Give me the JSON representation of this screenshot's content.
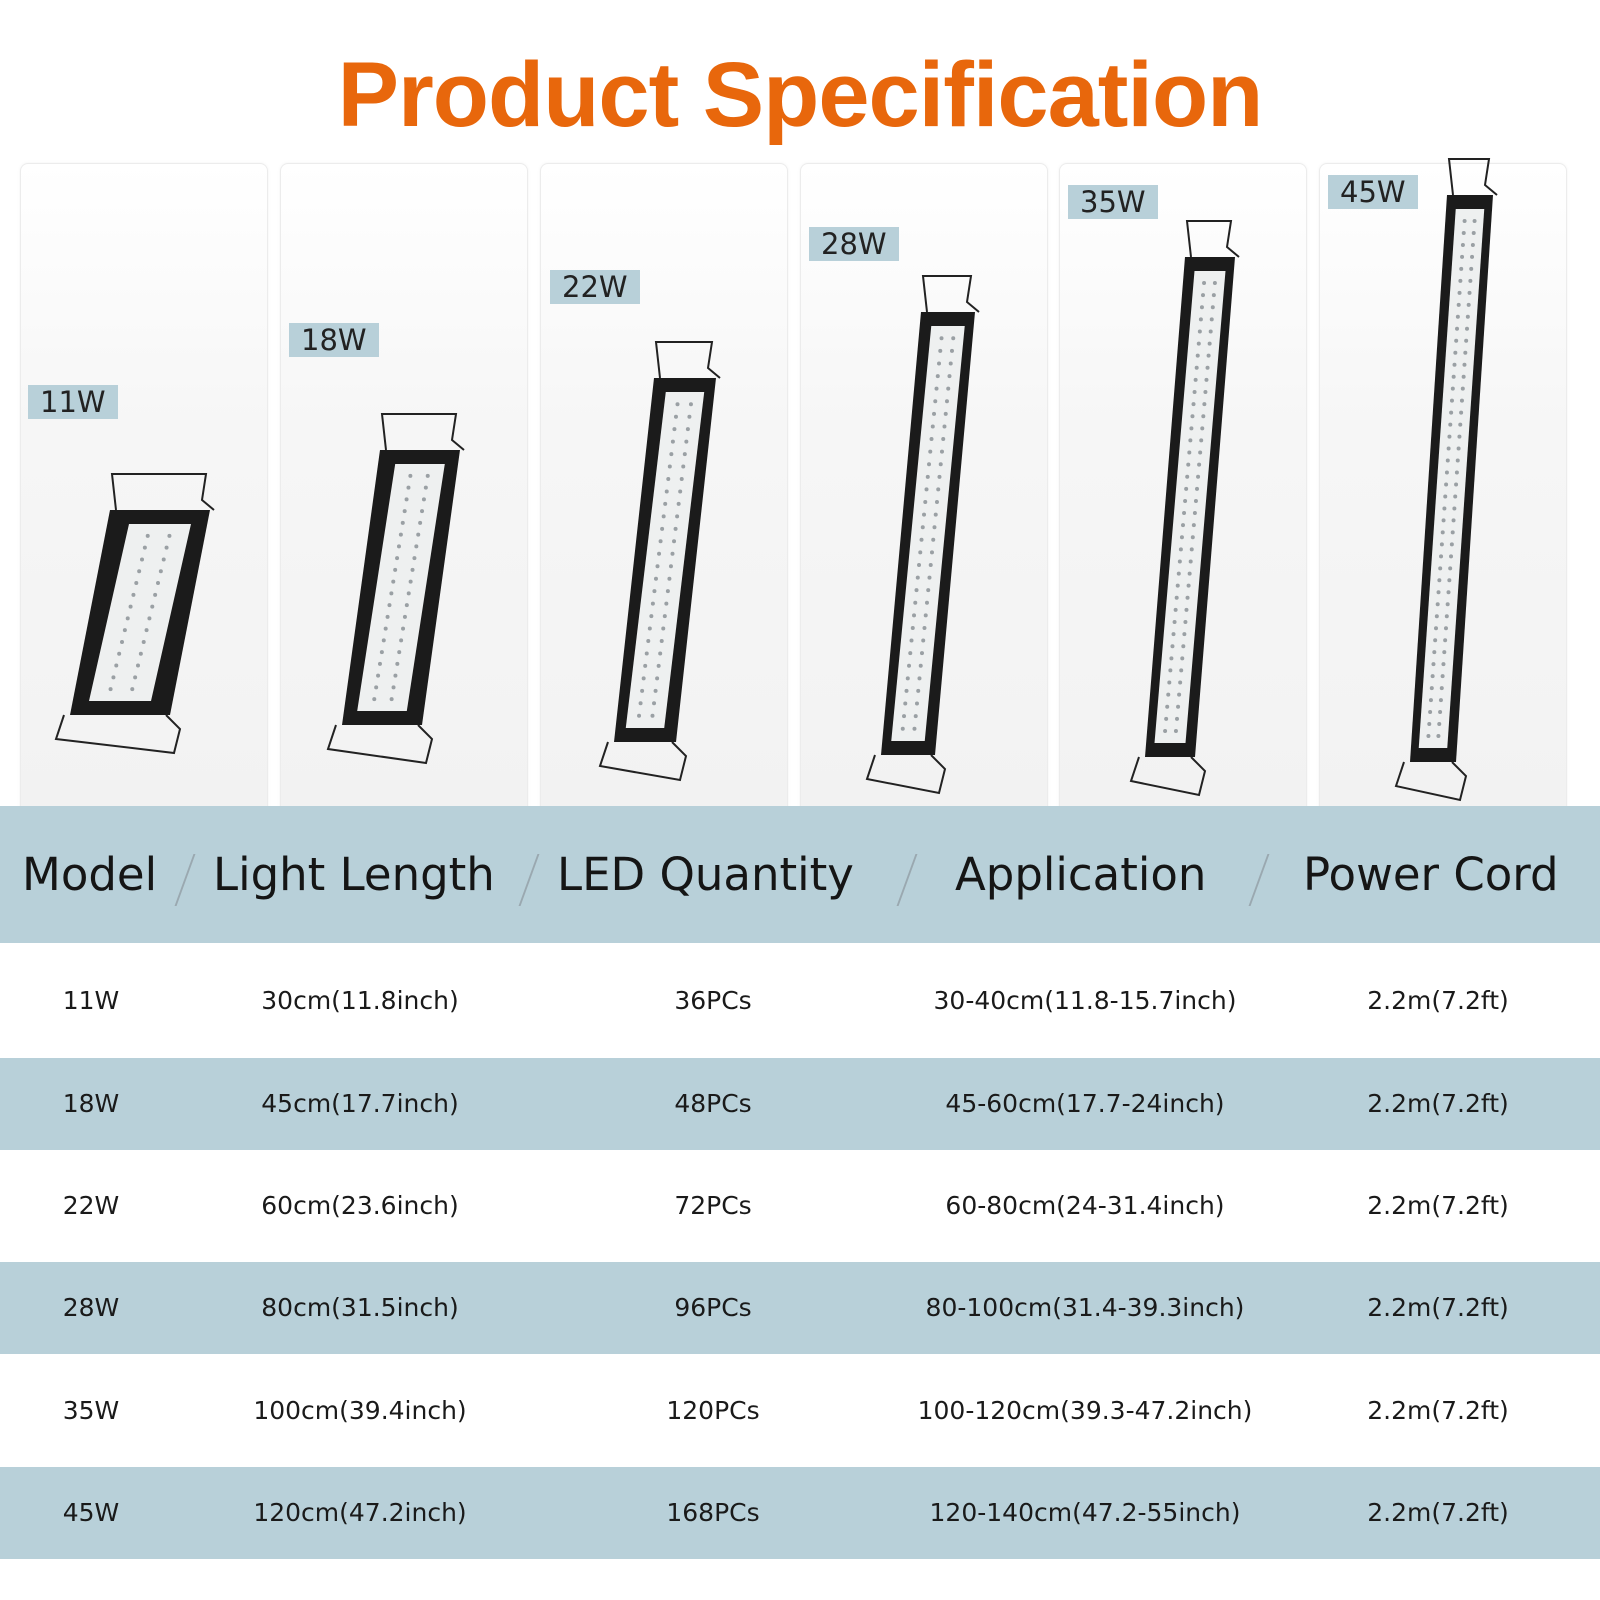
{
  "title": "Product Specification",
  "colors": {
    "title": "#e8670c",
    "band": "#b8d0d9",
    "tag_bg": "#b8d0d9",
    "white": "#ffffff"
  },
  "products": [
    {
      "tag": "11W"
    },
    {
      "tag": "18W"
    },
    {
      "tag": "22W"
    },
    {
      "tag": "28W"
    },
    {
      "tag": "35W"
    },
    {
      "tag": "45W"
    }
  ],
  "table": {
    "headers": [
      "Model",
      "Light Length",
      "LED Quantity",
      "Application",
      "Power Cord"
    ],
    "separator": "/",
    "rows": [
      [
        "11W",
        "30cm(11.8inch)",
        "36PCs",
        "30-40cm(11.8-15.7inch)",
        "2.2m(7.2ft)"
      ],
      [
        "18W",
        "45cm(17.7inch)",
        "48PCs",
        "45-60cm(17.7-24inch)",
        "2.2m(7.2ft)"
      ],
      [
        "22W",
        "60cm(23.6inch)",
        "72PCs",
        "60-80cm(24-31.4inch)",
        "2.2m(7.2ft)"
      ],
      [
        "28W",
        "80cm(31.5inch)",
        "96PCs",
        "80-100cm(31.4-39.3inch)",
        "2.2m(7.2ft)"
      ],
      [
        "35W",
        "100cm(39.4inch)",
        "120PCs",
        "100-120cm(39.3-47.2inch)",
        "2.2m(7.2ft)"
      ],
      [
        "45W",
        "120cm(47.2inch)",
        "168PCs",
        "120-140cm(47.2-55inch)",
        "2.2m(7.2ft)"
      ]
    ]
  }
}
